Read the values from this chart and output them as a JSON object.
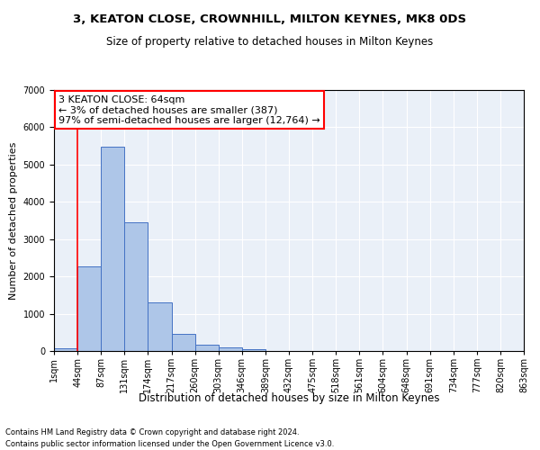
{
  "title": "3, KEATON CLOSE, CROWNHILL, MILTON KEYNES, MK8 0DS",
  "subtitle": "Size of property relative to detached houses in Milton Keynes",
  "xlabel": "Distribution of detached houses by size in Milton Keynes",
  "ylabel": "Number of detached properties",
  "footer_line1": "Contains HM Land Registry data © Crown copyright and database right 2024.",
  "footer_line2": "Contains public sector information licensed under the Open Government Licence v3.0.",
  "annotation_line1": "3 KEATON CLOSE: 64sqm",
  "annotation_line2": "← 3% of detached houses are smaller (387)",
  "annotation_line3": "97% of semi-detached houses are larger (12,764) →",
  "bar_values": [
    75,
    2280,
    5470,
    3450,
    1310,
    460,
    160,
    85,
    55,
    0,
    0,
    0,
    0,
    0,
    0,
    0,
    0,
    0,
    0,
    0
  ],
  "bar_color": "#aec6e8",
  "bar_edge_color": "#4472c4",
  "background_color": "#eaf0f8",
  "grid_color": "#ffffff",
  "tick_labels": [
    "1sqm",
    "44sqm",
    "87sqm",
    "131sqm",
    "174sqm",
    "217sqm",
    "260sqm",
    "303sqm",
    "346sqm",
    "389sqm",
    "432sqm",
    "475sqm",
    "518sqm",
    "561sqm",
    "604sqm",
    "648sqm",
    "691sqm",
    "734sqm",
    "777sqm",
    "820sqm",
    "863sqm"
  ],
  "red_line_x": 1,
  "ylim": [
    0,
    7000
  ],
  "yticks": [
    0,
    1000,
    2000,
    3000,
    4000,
    5000,
    6000,
    7000
  ],
  "title_fontsize": 9.5,
  "subtitle_fontsize": 8.5,
  "xlabel_fontsize": 8.5,
  "ylabel_fontsize": 8,
  "tick_fontsize": 7,
  "annotation_fontsize": 8,
  "footer_fontsize": 6
}
